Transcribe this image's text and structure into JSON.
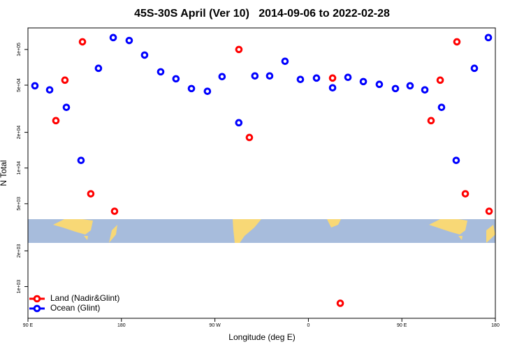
{
  "chart_data": {
    "type": "scatter",
    "title": "45S-30S April (Ver 10)   2014-09-06 to 2022-02-28",
    "x_label": "Longitude (deg E)",
    "y_label": "N Total",
    "log_y": true,
    "legend": "bottom-left",
    "xlim": [
      90,
      540
    ],
    "ylim": [
      540,
      152000
    ],
    "xticks": [
      {
        "value": 90,
        "label": "90 E"
      },
      {
        "value": 180,
        "label": "180"
      },
      {
        "value": 270,
        "label": "90 W"
      },
      {
        "value": 360,
        "label": "0"
      },
      {
        "value": 450,
        "label": "90 E"
      },
      {
        "value": 540,
        "label": "180"
      }
    ],
    "yticks": [
      {
        "value": 1000,
        "label": "1e+03"
      },
      {
        "value": 2000,
        "label": "2e+03"
      },
      {
        "value": 5000,
        "label": "5e+03"
      },
      {
        "value": 10000,
        "label": "1e+04"
      },
      {
        "value": 20000,
        "label": "2e+04"
      },
      {
        "value": 50000,
        "label": "5e+04"
      },
      {
        "value": 100000,
        "label": "1e+05"
      }
    ],
    "series": [
      {
        "name": "Land (Nadir&Glint)",
        "color": "#ff0000",
        "x": [
          116.9,
          125.6,
          142.5,
          150.5,
          173.4,
          293.1,
          303.2,
          383.3,
          390.7,
          478.1,
          486.9,
          503.0,
          511.1,
          534.0
        ],
        "values": [
          25100,
          55100,
          116000,
          6060,
          4320,
          100000,
          18100,
          57400,
          723,
          25100,
          55100,
          116000,
          6060,
          4320
        ]
      },
      {
        "name": "Ocean (Glint)",
        "color": "#0000ff",
        "x": [
          96.7,
          110.9,
          127.0,
          141.1,
          157.9,
          172.1,
          187.5,
          202.3,
          217.8,
          232.5,
          247.4,
          262.8,
          276.9,
          293.0,
          308.5,
          322.7,
          337.5,
          352.3,
          367.8,
          383.3,
          398.1,
          412.9,
          428.3,
          443.8,
          457.9,
          472.1,
          488.2,
          502.3,
          519.8,
          533.3
        ],
        "values": [
          49400,
          45600,
          32500,
          11600,
          69400,
          126000,
          119000,
          89700,
          64800,
          56600,
          46800,
          44400,
          59000,
          24100,
          59800,
          59800,
          79500,
          55900,
          57400,
          47500,
          58200,
          53600,
          50800,
          46800,
          49400,
          45600,
          32500,
          11600,
          69400,
          126000
        ]
      }
    ]
  }
}
